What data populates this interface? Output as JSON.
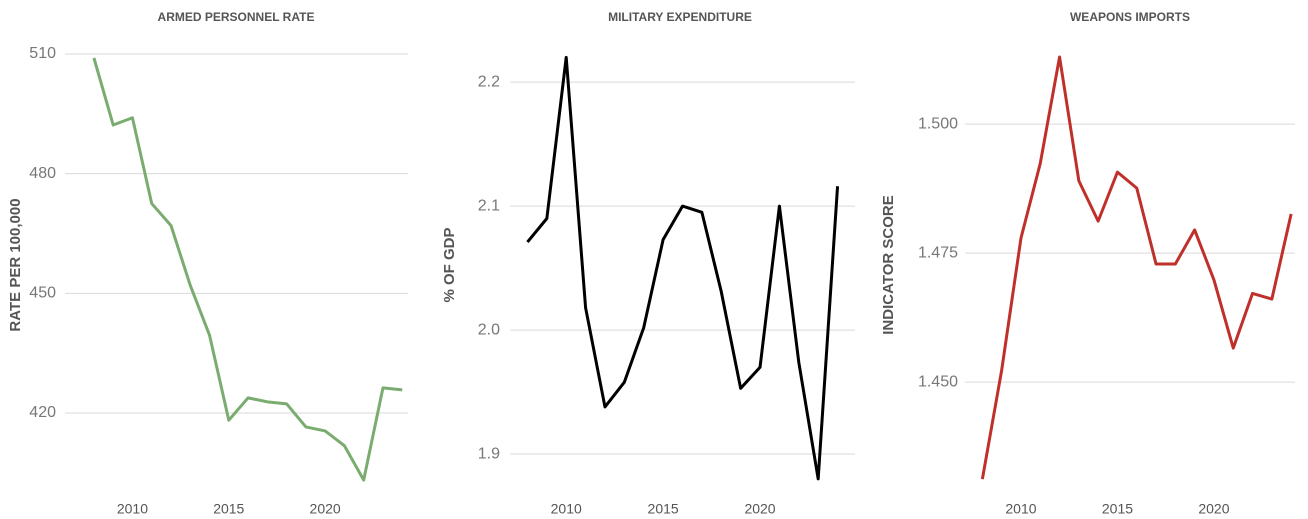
{
  "chart_data": [
    {
      "type": "line",
      "title": "ARMED PERSONNEL RATE",
      "ylabel": "RATE PER 100,000",
      "x": [
        2008,
        2009,
        2010,
        2011,
        2012,
        2013,
        2014,
        2015,
        2016,
        2017,
        2018,
        2019,
        2020,
        2021,
        2022,
        2023,
        2024
      ],
      "series": [
        {
          "name": "Armed personnel rate",
          "color": "#7aac6f",
          "values": [
            509,
            492.2,
            494,
            472.5,
            467,
            452,
            439.5,
            418.2,
            423.8,
            422.8,
            422.3,
            416.5,
            415.5,
            411.8,
            403.2,
            426.3,
            425.8
          ]
        }
      ],
      "xlim": [
        2006.5,
        2024.3
      ],
      "xticks": [
        2010,
        2015,
        2020
      ],
      "ylim": [
        400.7,
        513.5
      ],
      "yticks": [
        420,
        450,
        480,
        510
      ],
      "grid": true
    },
    {
      "type": "line",
      "title": "MILITARY EXPENDITURE",
      "ylabel": "% OF GDP",
      "x": [
        2008,
        2009,
        2010,
        2011,
        2012,
        2013,
        2014,
        2015,
        2016,
        2017,
        2018,
        2019,
        2020,
        2021,
        2022,
        2023,
        2024
      ],
      "series": [
        {
          "name": "Military expenditure",
          "color": "#000000",
          "values": [
            2.071,
            2.09,
            2.22,
            2.018,
            1.938,
            1.958,
            2.002,
            2.073,
            2.1,
            2.095,
            2.031,
            1.953,
            1.97,
            2.1,
            1.974,
            1.88,
            2.116
          ]
        }
      ],
      "xlim": [
        2007.1,
        2024.9
      ],
      "xticks": [
        2010,
        2015,
        2020
      ],
      "ylim": [
        1.871,
        2.234
      ],
      "yticks": [
        1.9,
        {
          "value": 2,
          "label": "2.0"
        },
        2.1,
        2.2
      ],
      "grid": true
    },
    {
      "type": "line",
      "title": "WEAPONS IMPORTS",
      "ylabel": "INDICATOR SCORE",
      "x": [
        2008,
        2009,
        2010,
        2011,
        2012,
        2013,
        2014,
        2015,
        2016,
        2017,
        2018,
        2019,
        2020,
        2021,
        2022,
        2023,
        2024
      ],
      "series": [
        {
          "name": "Weapons imports",
          "color": "#c0302b",
          "values": [
            1.4312,
            1.4523,
            1.4779,
            1.4924,
            1.513,
            1.489,
            1.4812,
            1.4907,
            1.4876,
            1.4729,
            1.4729,
            1.4795,
            1.4698,
            1.4566,
            1.4672,
            1.4661,
            1.4826
          ]
        }
      ],
      "xlim": [
        2007.1,
        2024.2
      ],
      "xticks": [
        2010,
        2015,
        2020
      ],
      "ylim": [
        1.4291,
        1.5163
      ],
      "yticks": [
        {
          "value": 1.45,
          "label": "1.450"
        },
        {
          "value": 1.475,
          "label": "1.475"
        },
        {
          "value": 1.5,
          "label": "1.500"
        }
      ],
      "grid": true
    }
  ]
}
